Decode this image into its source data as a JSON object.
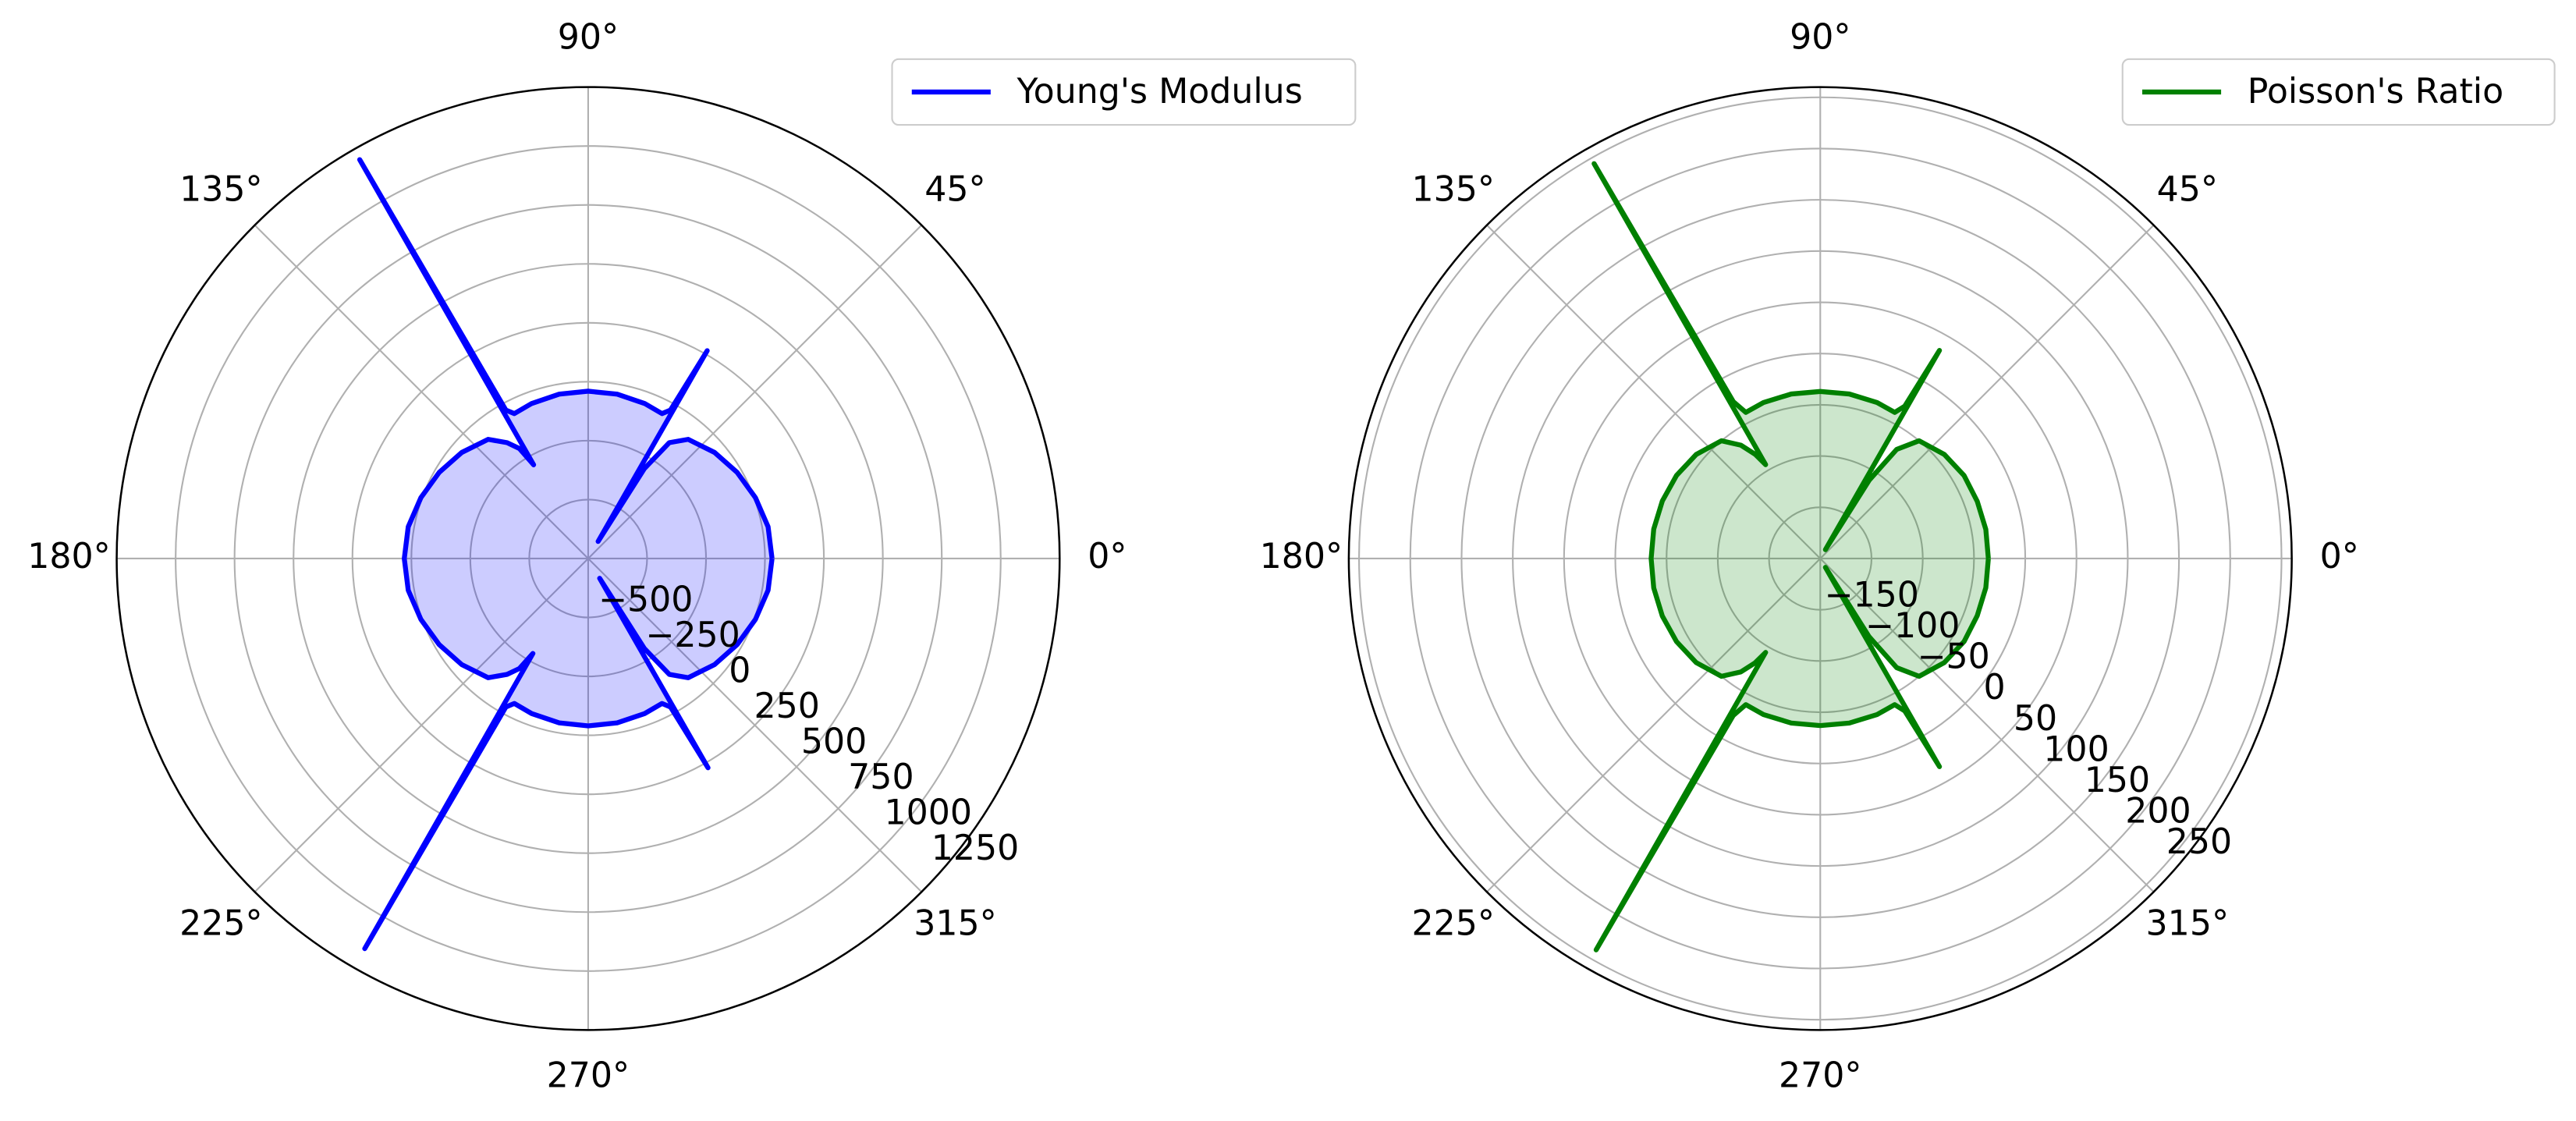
{
  "chart_data": [
    {
      "type": "polar",
      "x": [
        0,
        10,
        20,
        30,
        40,
        50,
        55,
        58,
        59.8,
        60.2,
        61,
        63,
        70,
        80,
        90,
        100,
        110,
        117,
        119,
        119.8,
        120.2,
        122,
        125,
        130,
        140,
        150,
        160,
        170,
        180,
        190,
        200,
        210,
        220,
        230,
        235,
        238,
        239.8,
        240.2,
        241,
        243,
        250,
        260,
        270,
        280,
        290,
        297,
        299,
        299.8,
        300.2,
        302,
        305,
        310,
        320,
        330,
        340,
        350,
        360
      ],
      "series": [
        {
          "name": "Young's Modulus",
          "color": "#0000ff",
          "fill_color": "rgba(0,0,255,0.2)",
          "values": [
            30,
            25,
            5,
            -20,
            -50,
            -90,
            -150,
            -300,
            -666,
            266,
            -30,
            -60,
            -50,
            -42,
            -40,
            -42,
            -50,
            -60,
            -30,
            1200,
            -290,
            -200,
            -150,
            -90,
            -50,
            -20,
            5,
            25,
            30,
            25,
            5,
            -20,
            -50,
            -90,
            -150,
            -200,
            -284,
            1157,
            -30,
            -60,
            -50,
            -42,
            -40,
            -42,
            -50,
            -60,
            -30,
            273,
            -653,
            -300,
            -150,
            -90,
            -50,
            -20,
            5,
            25,
            30
          ]
        }
      ],
      "xticks": [
        {
          "value": 0,
          "label": "0°"
        },
        {
          "value": 45,
          "label": "45°"
        },
        {
          "value": 90,
          "label": "90°"
        },
        {
          "value": 135,
          "label": "135°"
        },
        {
          "value": 180,
          "label": "180°"
        },
        {
          "value": 225,
          "label": "225°"
        },
        {
          "value": 270,
          "label": "270°"
        },
        {
          "value": 315,
          "label": "315°"
        }
      ],
      "ylim": [
        -750,
        1250
      ],
      "yticks": [
        {
          "value": -500,
          "label": "−500"
        },
        {
          "value": -250,
          "label": "−250"
        },
        0,
        250,
        500,
        750,
        1000,
        1250
      ],
      "grid": true,
      "legend": "upper right"
    },
    {
      "type": "polar",
      "x": [
        0,
        10,
        20,
        30,
        40,
        50,
        55,
        58,
        59.8,
        60.2,
        61,
        63,
        70,
        80,
        90,
        100,
        110,
        117,
        119,
        119.8,
        120.2,
        122,
        125,
        130,
        140,
        150,
        160,
        170,
        180,
        190,
        200,
        210,
        220,
        230,
        235,
        238,
        239.8,
        240.2,
        241,
        243,
        250,
        260,
        270,
        280,
        290,
        297,
        299,
        299.8,
        300.2,
        302,
        305,
        310,
        320,
        330,
        340,
        350,
        360
      ],
      "series": [
        {
          "name": "Poisson's Ratio",
          "color": "#008000",
          "fill_color": "rgba(0,128,0,0.2)",
          "values": [
            -36,
            -36,
            -37,
            -38,
            -42,
            -50,
            -70,
            -110,
            -190,
            34,
            -30,
            -40,
            -38,
            -37,
            -37,
            -37,
            -38,
            -40,
            -25,
            244,
            -94,
            -80,
            -65,
            -50,
            -42,
            -38,
            -36,
            -35,
            -35,
            -35,
            -36,
            -38,
            -42,
            -50,
            -65,
            -80,
            -94,
            240,
            -25,
            -40,
            -38,
            -37,
            -37,
            -37,
            -38,
            -40,
            -30,
            34,
            -190,
            -110,
            -70,
            -50,
            -42,
            -38,
            -37,
            -36,
            -36
          ]
        }
      ],
      "xticks": [
        {
          "value": 0,
          "label": "0°"
        },
        {
          "value": 45,
          "label": "45°"
        },
        {
          "value": 90,
          "label": "90°"
        },
        {
          "value": 135,
          "label": "135°"
        },
        {
          "value": 180,
          "label": "180°"
        },
        {
          "value": 225,
          "label": "225°"
        },
        {
          "value": 270,
          "label": "270°"
        },
        {
          "value": 315,
          "label": "315°"
        }
      ],
      "ylim": [
        -200,
        260
      ],
      "yticks": [
        {
          "value": -150,
          "label": "−150"
        },
        {
          "value": -100,
          "label": "−100"
        },
        {
          "value": -50,
          "label": "−50"
        },
        0,
        50,
        100,
        150,
        200,
        250
      ],
      "grid": true,
      "legend": "upper right"
    }
  ]
}
